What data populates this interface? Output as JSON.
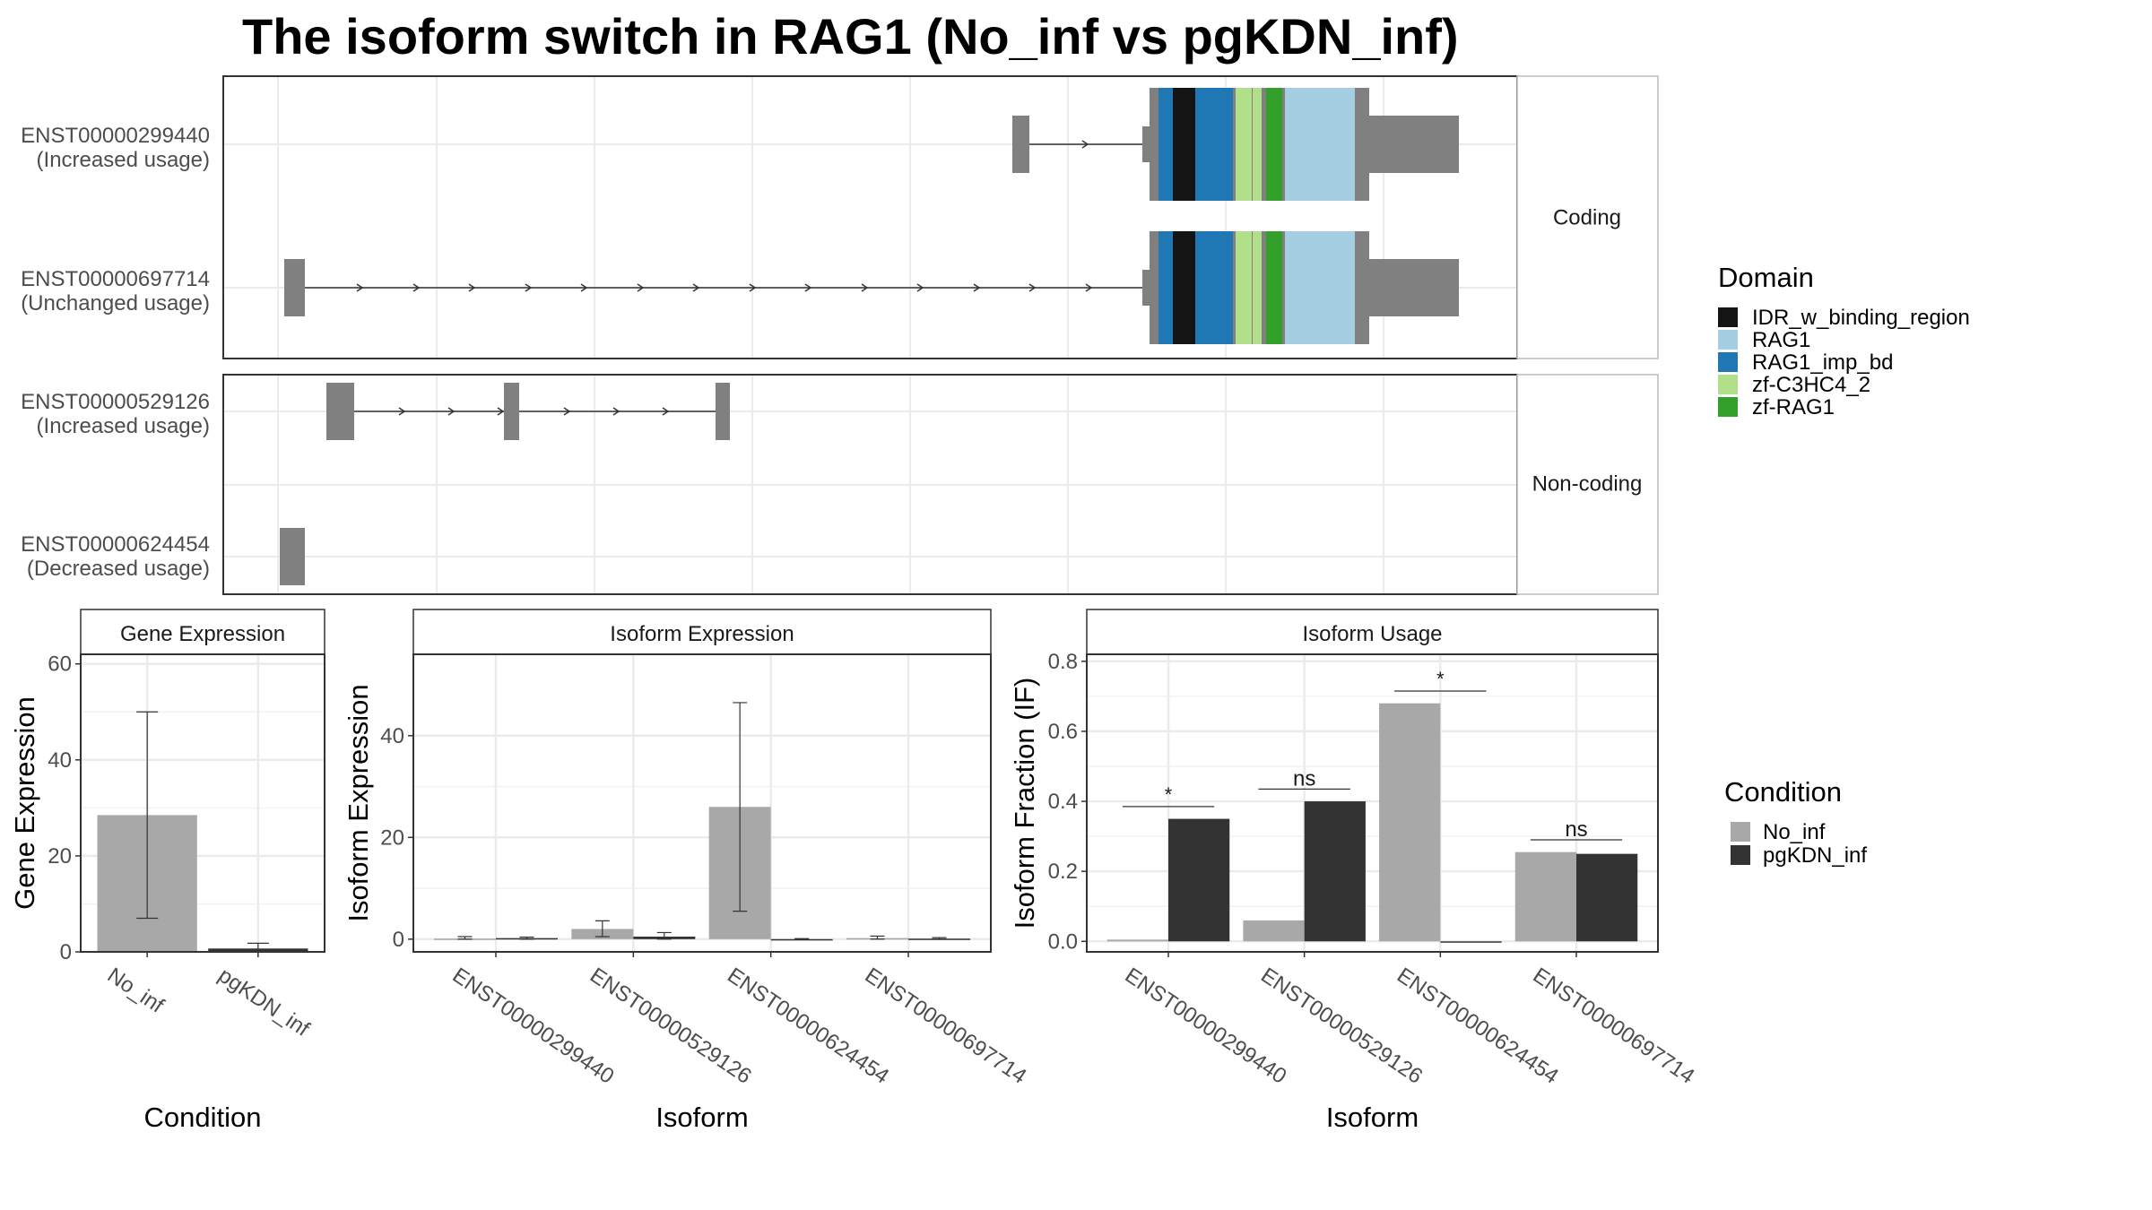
{
  "title": "The isoform switch in RAG1 (No_inf vs pgKDN_inf)",
  "colors": {
    "exon": "#808080",
    "IDR_w_binding_region": "#141414",
    "RAG1": "#a6cee3",
    "RAG1_imp_bd": "#1f78b4",
    "zf-C3HC4_2": "#b2df8a",
    "zf-RAG1": "#33a02c",
    "No_inf": "#a8a8a8",
    "pgKDN_inf": "#333333"
  },
  "panels": {
    "coding_label": "Coding",
    "noncoding_label": "Non-coding",
    "gene_expression": "Gene Expression",
    "isoform_expression": "Isoform Expression",
    "isoform_usage": "Isoform Usage"
  },
  "transcripts": [
    {
      "id": "ENST00000299440",
      "usage": "(Increased usage)",
      "group": "coding"
    },
    {
      "id": "ENST00000697714",
      "usage": "(Unchanged usage)",
      "group": "coding"
    },
    {
      "id": "ENST00000529126",
      "usage": "(Increased usage)",
      "group": "noncoding"
    },
    {
      "id": "ENST00000624454",
      "usage": "(Decreased usage)",
      "group": "noncoding"
    }
  ],
  "legend_domain": {
    "title": "Domain",
    "items": [
      "IDR_w_binding_region",
      "RAG1",
      "RAG1_imp_bd",
      "zf-C3HC4_2",
      "zf-RAG1"
    ]
  },
  "legend_condition": {
    "title": "Condition",
    "items": [
      "No_inf",
      "pgKDN_inf"
    ]
  },
  "chart_data": [
    {
      "type": "bar",
      "title": "Gene Expression",
      "xlabel": "Condition",
      "ylabel": "Gene Expression",
      "categories": [
        "No_inf",
        "pgKDN_inf"
      ],
      "values": [
        28.5,
        0.7
      ],
      "error_low": [
        7,
        0.2
      ],
      "error_high": [
        50,
        1.8
      ],
      "ylim": [
        0,
        62
      ],
      "yticks": [
        0,
        20,
        40,
        60
      ]
    },
    {
      "type": "bar",
      "title": "Isoform Expression",
      "xlabel": "Isoform",
      "ylabel": "Isoform Expression",
      "categories": [
        "ENST00000299440",
        "ENST00000529126",
        "ENST00000624454",
        "ENST00000697714"
      ],
      "series": [
        {
          "name": "No_inf",
          "values": [
            0.1,
            2,
            26,
            0.2
          ],
          "error_low": [
            0,
            0.5,
            5.5,
            0
          ],
          "error_high": [
            0.5,
            3.6,
            46.5,
            0.6
          ]
        },
        {
          "name": "pgKDN_inf",
          "values": [
            0.2,
            0.5,
            0,
            0.1
          ],
          "error_low": [
            0,
            0,
            0,
            0
          ],
          "error_high": [
            0.4,
            1.3,
            0.1,
            0.3
          ]
        }
      ],
      "ylim": [
        -2.5,
        56
      ],
      "yticks": [
        0,
        20,
        40
      ]
    },
    {
      "type": "bar",
      "title": "Isoform Usage",
      "xlabel": "Isoform",
      "ylabel": "Isoform Fraction (IF)",
      "categories": [
        "ENST00000299440",
        "ENST00000529126",
        "ENST00000624454",
        "ENST00000697714"
      ],
      "series": [
        {
          "name": "No_inf",
          "values": [
            0.005,
            0.06,
            0.68,
            0.255
          ]
        },
        {
          "name": "pgKDN_inf",
          "values": [
            0.35,
            0.4,
            0,
            0.25
          ]
        }
      ],
      "significance": [
        "*",
        "ns",
        "*",
        "ns"
      ],
      "ylim": [
        -0.03,
        0.82
      ],
      "yticks": [
        "0.0",
        "0.2",
        "0.4",
        "0.6",
        "0.8"
      ]
    }
  ]
}
